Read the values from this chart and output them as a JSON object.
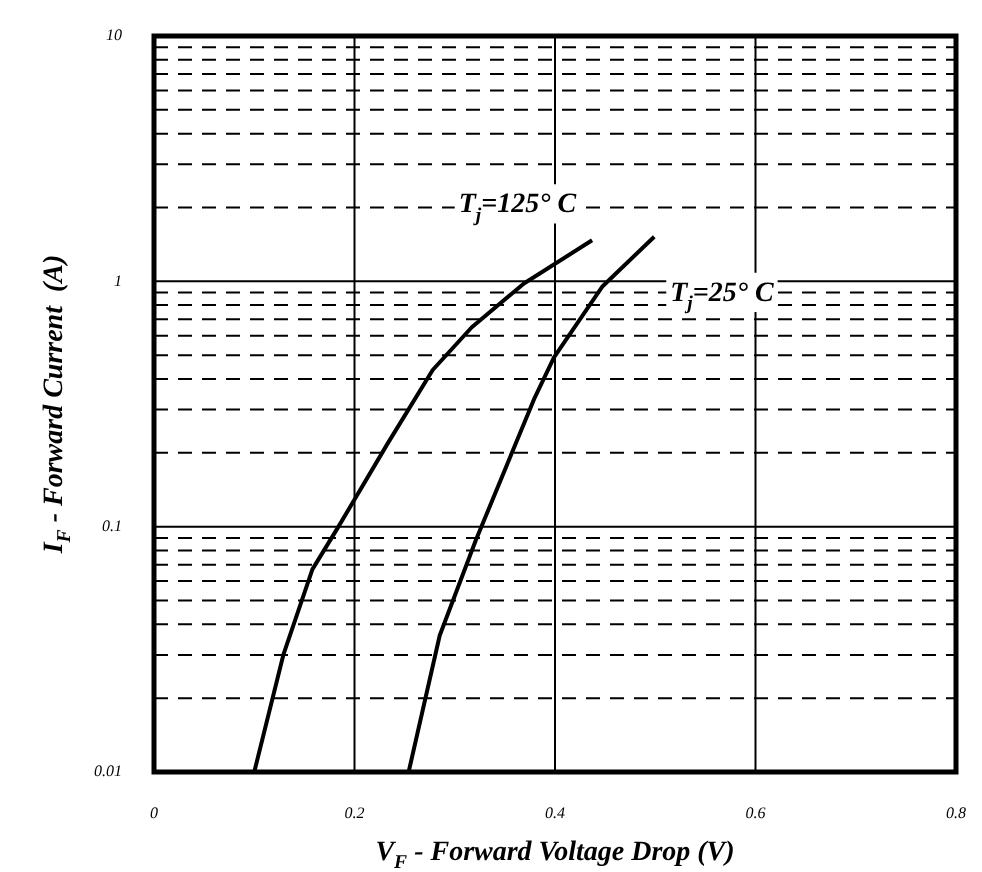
{
  "chart_data": {
    "type": "line",
    "xlabel": "V$_{F}$ - Forward Voltage Drop (V)",
    "ylabel": "I$_{F}$ - Forward Current  (A)",
    "series": [
      {
        "name": "T$_{j}$=125° C",
        "color": "#000000",
        "x": [
          0.1,
          0.129,
          0.158,
          0.184,
          0.233,
          0.278,
          0.317,
          0.369,
          0.437
        ],
        "values": [
          0.01,
          0.03,
          0.067,
          0.1,
          0.218,
          0.435,
          0.65,
          0.98,
          1.47
        ]
      },
      {
        "name": "T$_{j}$=25° C",
        "color": "#000000",
        "x": [
          0.254,
          0.285,
          0.321,
          0.379,
          0.399,
          0.447,
          0.499
        ],
        "values": [
          0.01,
          0.036,
          0.088,
          0.33,
          0.49,
          0.95,
          1.52
        ]
      }
    ],
    "xlim": [
      0,
      0.8
    ],
    "xticks": [
      0,
      0.2,
      0.4,
      0.6,
      0.8
    ],
    "ylim": [
      0.01,
      10
    ],
    "log": true,
    "yticks": [
      0.01,
      {
        "value": 0.02,
        "label": null
      },
      {
        "value": 0.03,
        "label": null
      },
      {
        "value": 0.04,
        "label": null
      },
      {
        "value": 0.05,
        "label": null
      },
      {
        "value": 0.06,
        "label": null
      },
      {
        "value": 0.07,
        "label": null
      },
      {
        "value": 0.08,
        "label": null
      },
      {
        "value": 0.09,
        "label": null
      },
      0.1,
      {
        "value": 0.2,
        "label": null
      },
      {
        "value": 0.3,
        "label": null
      },
      {
        "value": 0.4,
        "label": null
      },
      {
        "value": 0.5,
        "label": null
      },
      {
        "value": 0.6,
        "label": null
      },
      {
        "value": 0.7,
        "label": null
      },
      {
        "value": 0.8,
        "label": null
      },
      {
        "value": 0.9,
        "label": null
      },
      1,
      {
        "value": 2,
        "label": null
      },
      {
        "value": 3,
        "label": null
      },
      {
        "value": 4,
        "label": null
      },
      {
        "value": 5,
        "label": null
      },
      {
        "value": 6,
        "label": null
      },
      {
        "value": 7,
        "label": null
      },
      {
        "value": 8,
        "label": null
      },
      {
        "value": 9,
        "label": null
      },
      10
    ],
    "grid": true,
    "legend": false,
    "marker": "none",
    "line_style": "solid"
  }
}
